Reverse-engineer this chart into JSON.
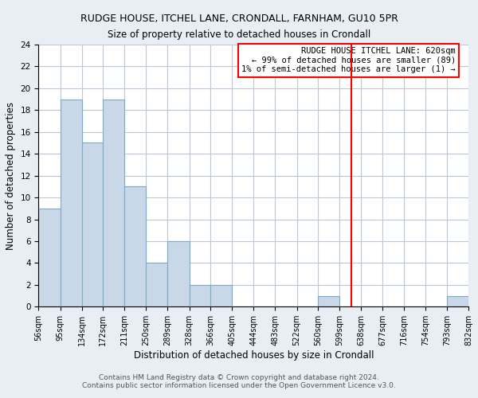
{
  "title": "RUDGE HOUSE, ITCHEL LANE, CRONDALL, FARNHAM, GU10 5PR",
  "subtitle": "Size of property relative to detached houses in Crondall",
  "xlabel": "Distribution of detached houses by size in Crondall",
  "ylabel": "Number of detached properties",
  "bin_edges": [
    56,
    95,
    134,
    172,
    211,
    250,
    289,
    328,
    366,
    405,
    444,
    483,
    522,
    560,
    599,
    638,
    677,
    716,
    754,
    793,
    832
  ],
  "counts": [
    9,
    19,
    15,
    19,
    11,
    4,
    6,
    2,
    2,
    0,
    0,
    0,
    0,
    1,
    0,
    0,
    0,
    0,
    0,
    1
  ],
  "bar_color": "#c8d8e8",
  "bar_edge_color": "#7aaac8",
  "reference_line_x": 620,
  "reference_line_color": "red",
  "annotation_line1": "RUDGE HOUSE ITCHEL LANE: 620sqm",
  "annotation_line2": "← 99% of detached houses are smaller (89)",
  "annotation_line3": "1% of semi-detached houses are larger (1) →",
  "ylim": [
    0,
    24
  ],
  "yticks": [
    0,
    2,
    4,
    6,
    8,
    10,
    12,
    14,
    16,
    18,
    20,
    22,
    24
  ],
  "tick_labels": [
    "56sqm",
    "95sqm",
    "134sqm",
    "172sqm",
    "211sqm",
    "250sqm",
    "289sqm",
    "328sqm",
    "366sqm",
    "405sqm",
    "444sqm",
    "483sqm",
    "522sqm",
    "560sqm",
    "599sqm",
    "638sqm",
    "677sqm",
    "716sqm",
    "754sqm",
    "793sqm",
    "832sqm"
  ],
  "footer_line1": "Contains HM Land Registry data © Crown copyright and database right 2024.",
  "footer_line2": "Contains public sector information licensed under the Open Government Licence v3.0.",
  "background_color": "#e8eef4",
  "plot_background_color": "#ffffff",
  "grid_color": "#b8c8d8"
}
